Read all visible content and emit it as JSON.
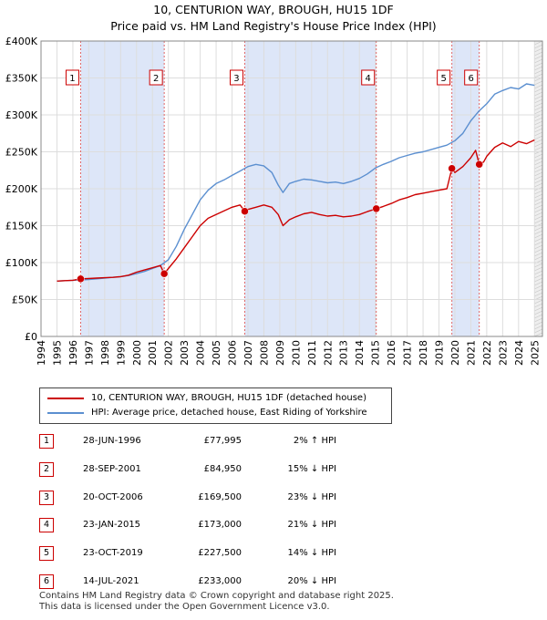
{
  "title_line1": "10, CENTURION WAY, BROUGH, HU15 1DF",
  "title_line2": "Price paid vs. HM Land Registry's House Price Index (HPI)",
  "colors": {
    "price_paid": "#cc0000",
    "hpi": "#5b8fd0",
    "shade": "#dde6f8",
    "grid": "#dddddd",
    "vline": "#e06666"
  },
  "chart_data": {
    "type": "line",
    "xlabel": "",
    "ylabel": "",
    "xlim": [
      1994,
      2025.5
    ],
    "ylim": [
      0,
      400000
    ],
    "y_ticks": [
      {
        "value": 0,
        "label": "£0"
      },
      {
        "value": 50000,
        "label": "£50K"
      },
      {
        "value": 100000,
        "label": "£100K"
      },
      {
        "value": 150000,
        "label": "£150K"
      },
      {
        "value": 200000,
        "label": "£200K"
      },
      {
        "value": 250000,
        "label": "£250K"
      },
      {
        "value": 300000,
        "label": "£300K"
      },
      {
        "value": 350000,
        "label": "£350K"
      },
      {
        "value": 400000,
        "label": "£400K"
      }
    ],
    "x_ticks": [
      "1994",
      "1995",
      "1996",
      "1997",
      "1998",
      "1999",
      "2000",
      "2001",
      "2002",
      "2003",
      "2004",
      "2005",
      "2006",
      "2007",
      "2008",
      "2009",
      "2010",
      "2011",
      "2012",
      "2013",
      "2014",
      "2015",
      "2016",
      "2017",
      "2018",
      "2019",
      "2020",
      "2021",
      "2022",
      "2023",
      "2024",
      "2025"
    ],
    "series": [
      {
        "name": "10, CENTURION WAY, BROUGH, HU15 1DF (detached house)",
        "color": "#cc0000",
        "x": [
          1995.0,
          1995.5,
          1996.0,
          1996.49,
          1997.0,
          1997.5,
          1998.0,
          1998.5,
          1999.0,
          1999.5,
          2000.0,
          2000.5,
          2001.0,
          2001.5,
          2001.74,
          2002.0,
          2002.5,
          2003.0,
          2003.5,
          2004.0,
          2004.5,
          2005.0,
          2005.5,
          2006.0,
          2006.5,
          2006.8,
          2007.0,
          2007.5,
          2008.0,
          2008.5,
          2008.9,
          2009.2,
          2009.6,
          2010.0,
          2010.5,
          2011.0,
          2011.5,
          2012.0,
          2012.5,
          2013.0,
          2013.5,
          2014.0,
          2014.5,
          2015.06,
          2015.5,
          2016.0,
          2016.5,
          2017.0,
          2017.5,
          2018.0,
          2018.5,
          2019.0,
          2019.5,
          2019.81,
          2020.0,
          2020.5,
          2021.0,
          2021.3,
          2021.53,
          2021.8,
          2022.0,
          2022.5,
          2023.0,
          2023.5,
          2024.0,
          2024.5,
          2025.0
        ],
        "values": [
          75000,
          75500,
          76000,
          77995,
          78500,
          79000,
          79500,
          80000,
          81000,
          83000,
          87000,
          90000,
          93000,
          96000,
          84950,
          92000,
          105000,
          120000,
          135000,
          150000,
          160000,
          165000,
          170000,
          175000,
          178000,
          169500,
          172000,
          175000,
          178000,
          175000,
          165000,
          150000,
          158000,
          162000,
          166000,
          168000,
          165000,
          163000,
          164000,
          162000,
          163000,
          165000,
          169000,
          173000,
          176000,
          180000,
          185000,
          188000,
          192000,
          194000,
          196000,
          198000,
          200000,
          227500,
          222000,
          230000,
          242000,
          252000,
          233000,
          236000,
          244000,
          256000,
          262000,
          257000,
          264000,
          261000,
          266000
        ]
      },
      {
        "name": "HPI: Average price, detached house, East Riding of Yorkshire",
        "color": "#5b8fd0",
        "x": [
          1995.0,
          1995.5,
          1996.0,
          1996.5,
          1997.0,
          1997.5,
          1998.0,
          1998.5,
          1999.0,
          1999.5,
          2000.0,
          2000.5,
          2001.0,
          2001.5,
          2002.0,
          2002.5,
          2003.0,
          2003.5,
          2004.0,
          2004.5,
          2005.0,
          2005.5,
          2006.0,
          2006.5,
          2007.0,
          2007.5,
          2008.0,
          2008.5,
          2008.9,
          2009.2,
          2009.6,
          2010.0,
          2010.5,
          2011.0,
          2011.5,
          2012.0,
          2012.5,
          2013.0,
          2013.5,
          2014.0,
          2014.5,
          2015.0,
          2015.5,
          2016.0,
          2016.5,
          2017.0,
          2017.5,
          2018.0,
          2018.5,
          2019.0,
          2019.5,
          2020.0,
          2020.5,
          2021.0,
          2021.5,
          2022.0,
          2022.5,
          2023.0,
          2023.5,
          2024.0,
          2024.5,
          2025.0
        ],
        "values": [
          75000,
          75500,
          76000,
          76500,
          77000,
          78000,
          79000,
          80000,
          81000,
          82500,
          85000,
          88000,
          92000,
          96000,
          104000,
          122000,
          145000,
          165000,
          185000,
          198000,
          207000,
          212000,
          218000,
          224000,
          230000,
          233000,
          231000,
          222000,
          205000,
          195000,
          207000,
          210000,
          213000,
          212000,
          210000,
          208000,
          209000,
          207000,
          210000,
          214000,
          220000,
          228000,
          233000,
          237000,
          242000,
          245000,
          248000,
          250000,
          253000,
          256000,
          259000,
          265000,
          275000,
          292000,
          305000,
          315000,
          328000,
          333000,
          337000,
          335000,
          342000,
          340000
        ]
      }
    ],
    "shaded_spans": [
      [
        1996.49,
        2001.74
      ],
      [
        2006.8,
        2015.06
      ],
      [
        2019.81,
        2021.53
      ]
    ],
    "markers": [
      {
        "id": "1",
        "x": 1996.49,
        "value": 77995
      },
      {
        "id": "2",
        "x": 2001.74,
        "value": 84950
      },
      {
        "id": "3",
        "x": 2006.8,
        "value": 169500
      },
      {
        "id": "4",
        "x": 2015.06,
        "value": 173000
      },
      {
        "id": "5",
        "x": 2019.81,
        "value": 227500
      },
      {
        "id": "6",
        "x": 2021.53,
        "value": 233000
      }
    ]
  },
  "legend": {
    "item1": "10, CENTURION WAY, BROUGH, HU15 1DF (detached house)",
    "item2": "HPI: Average price, detached house, East Riding of Yorkshire"
  },
  "transactions": [
    {
      "num": "1",
      "date": "28-JUN-1996",
      "price": "£77,995",
      "hpi": "2% ↑ HPI"
    },
    {
      "num": "2",
      "date": "28-SEP-2001",
      "price": "£84,950",
      "hpi": "15% ↓ HPI"
    },
    {
      "num": "3",
      "date": "20-OCT-2006",
      "price": "£169,500",
      "hpi": "23% ↓ HPI"
    },
    {
      "num": "4",
      "date": "23-JAN-2015",
      "price": "£173,000",
      "hpi": "21% ↓ HPI"
    },
    {
      "num": "5",
      "date": "23-OCT-2019",
      "price": "£227,500",
      "hpi": "14% ↓ HPI"
    },
    {
      "num": "6",
      "date": "14-JUL-2021",
      "price": "£233,000",
      "hpi": "20% ↓ HPI"
    }
  ],
  "footer": {
    "line1": "Contains HM Land Registry data © Crown copyright and database right 2025.",
    "line2": "This data is licensed under the Open Government Licence v3.0."
  }
}
